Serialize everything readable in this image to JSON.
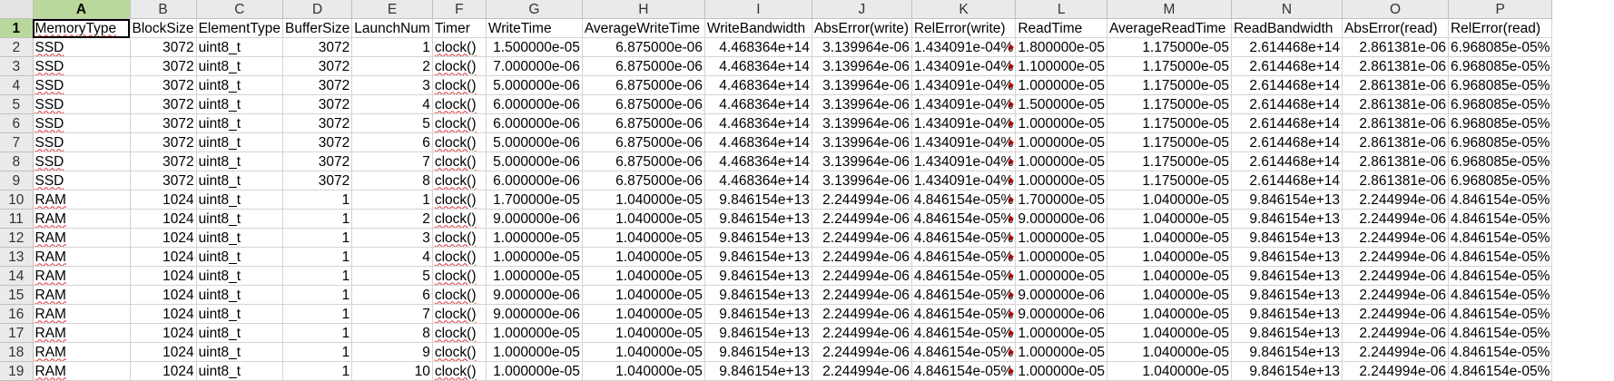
{
  "column_letters": [
    "A",
    "B",
    "C",
    "D",
    "E",
    "F",
    "G",
    "H",
    "I",
    "J",
    "K",
    "L",
    "M",
    "N",
    "O",
    "P"
  ],
  "header": [
    "MemoryType",
    "BlockSize",
    "ElementType",
    "BufferSize",
    "LaunchNum",
    "Timer",
    "WriteTime",
    "AverageWriteTime",
    "WriteBandwidth",
    "AbsError(write)",
    "RelError(write)",
    "ReadTime",
    "AverageReadTime",
    "ReadBandwidth",
    "AbsError(read)",
    "RelError(read)"
  ],
  "rows": [
    {
      "n": "2",
      "c": [
        "SSD",
        "3072",
        "uint8_t",
        "3072",
        "1",
        "clock()",
        "1.500000e-05",
        "6.875000e-06",
        "4.468364e+14",
        "3.139964e-06",
        "1.434091e-04%",
        "1.800000e-05",
        "1.175000e-05",
        "2.614468e+14",
        "2.861381e-06",
        "6.968085e-05%"
      ]
    },
    {
      "n": "3",
      "c": [
        "SSD",
        "3072",
        "uint8_t",
        "3072",
        "2",
        "clock()",
        "7.000000e-06",
        "6.875000e-06",
        "4.468364e+14",
        "3.139964e-06",
        "1.434091e-04%",
        "1.100000e-05",
        "1.175000e-05",
        "2.614468e+14",
        "2.861381e-06",
        "6.968085e-05%"
      ]
    },
    {
      "n": "4",
      "c": [
        "SSD",
        "3072",
        "uint8_t",
        "3072",
        "3",
        "clock()",
        "5.000000e-06",
        "6.875000e-06",
        "4.468364e+14",
        "3.139964e-06",
        "1.434091e-04%",
        "1.000000e-05",
        "1.175000e-05",
        "2.614468e+14",
        "2.861381e-06",
        "6.968085e-05%"
      ]
    },
    {
      "n": "5",
      "c": [
        "SSD",
        "3072",
        "uint8_t",
        "3072",
        "4",
        "clock()",
        "6.000000e-06",
        "6.875000e-06",
        "4.468364e+14",
        "3.139964e-06",
        "1.434091e-04%",
        "1.500000e-05",
        "1.175000e-05",
        "2.614468e+14",
        "2.861381e-06",
        "6.968085e-05%"
      ]
    },
    {
      "n": "6",
      "c": [
        "SSD",
        "3072",
        "uint8_t",
        "3072",
        "5",
        "clock()",
        "6.000000e-06",
        "6.875000e-06",
        "4.468364e+14",
        "3.139964e-06",
        "1.434091e-04%",
        "1.000000e-05",
        "1.175000e-05",
        "2.614468e+14",
        "2.861381e-06",
        "6.968085e-05%"
      ]
    },
    {
      "n": "7",
      "c": [
        "SSD",
        "3072",
        "uint8_t",
        "3072",
        "6",
        "clock()",
        "5.000000e-06",
        "6.875000e-06",
        "4.468364e+14",
        "3.139964e-06",
        "1.434091e-04%",
        "1.000000e-05",
        "1.175000e-05",
        "2.614468e+14",
        "2.861381e-06",
        "6.968085e-05%"
      ]
    },
    {
      "n": "8",
      "c": [
        "SSD",
        "3072",
        "uint8_t",
        "3072",
        "7",
        "clock()",
        "5.000000e-06",
        "6.875000e-06",
        "4.468364e+14",
        "3.139964e-06",
        "1.434091e-04%",
        "1.000000e-05",
        "1.175000e-05",
        "2.614468e+14",
        "2.861381e-06",
        "6.968085e-05%"
      ]
    },
    {
      "n": "9",
      "c": [
        "SSD",
        "3072",
        "uint8_t",
        "3072",
        "8",
        "clock()",
        "6.000000e-06",
        "6.875000e-06",
        "4.468364e+14",
        "3.139964e-06",
        "1.434091e-04%",
        "1.000000e-05",
        "1.175000e-05",
        "2.614468e+14",
        "2.861381e-06",
        "6.968085e-05%"
      ]
    },
    {
      "n": "10",
      "c": [
        "RAM",
        "1024",
        "uint8_t",
        "1",
        "1",
        "clock()",
        "1.700000e-05",
        "1.040000e-05",
        "9.846154e+13",
        "2.244994e-06",
        "4.846154e-05%",
        "1.700000e-05",
        "1.040000e-05",
        "9.846154e+13",
        "2.244994e-06",
        "4.846154e-05%"
      ]
    },
    {
      "n": "11",
      "c": [
        "RAM",
        "1024",
        "uint8_t",
        "1",
        "2",
        "clock()",
        "9.000000e-06",
        "1.040000e-05",
        "9.846154e+13",
        "2.244994e-06",
        "4.846154e-05%",
        "9.000000e-06",
        "1.040000e-05",
        "9.846154e+13",
        "2.244994e-06",
        "4.846154e-05%"
      ]
    },
    {
      "n": "12",
      "c": [
        "RAM",
        "1024",
        "uint8_t",
        "1",
        "3",
        "clock()",
        "1.000000e-05",
        "1.040000e-05",
        "9.846154e+13",
        "2.244994e-06",
        "4.846154e-05%",
        "1.000000e-05",
        "1.040000e-05",
        "9.846154e+13",
        "2.244994e-06",
        "4.846154e-05%"
      ]
    },
    {
      "n": "13",
      "c": [
        "RAM",
        "1024",
        "uint8_t",
        "1",
        "4",
        "clock()",
        "1.000000e-05",
        "1.040000e-05",
        "9.846154e+13",
        "2.244994e-06",
        "4.846154e-05%",
        "1.000000e-05",
        "1.040000e-05",
        "9.846154e+13",
        "2.244994e-06",
        "4.846154e-05%"
      ]
    },
    {
      "n": "14",
      "c": [
        "RAM",
        "1024",
        "uint8_t",
        "1",
        "5",
        "clock()",
        "1.000000e-05",
        "1.040000e-05",
        "9.846154e+13",
        "2.244994e-06",
        "4.846154e-05%",
        "1.000000e-05",
        "1.040000e-05",
        "9.846154e+13",
        "2.244994e-06",
        "4.846154e-05%"
      ]
    },
    {
      "n": "15",
      "c": [
        "RAM",
        "1024",
        "uint8_t",
        "1",
        "6",
        "clock()",
        "9.000000e-06",
        "1.040000e-05",
        "9.846154e+13",
        "2.244994e-06",
        "4.846154e-05%",
        "9.000000e-06",
        "1.040000e-05",
        "9.846154e+13",
        "2.244994e-06",
        "4.846154e-05%"
      ]
    },
    {
      "n": "16",
      "c": [
        "RAM",
        "1024",
        "uint8_t",
        "1",
        "7",
        "clock()",
        "9.000000e-06",
        "1.040000e-05",
        "9.846154e+13",
        "2.244994e-06",
        "4.846154e-05%",
        "9.000000e-06",
        "1.040000e-05",
        "9.846154e+13",
        "2.244994e-06",
        "4.846154e-05%"
      ]
    },
    {
      "n": "17",
      "c": [
        "RAM",
        "1024",
        "uint8_t",
        "1",
        "8",
        "clock()",
        "1.000000e-05",
        "1.040000e-05",
        "9.846154e+13",
        "2.244994e-06",
        "4.846154e-05%",
        "1.000000e-05",
        "1.040000e-05",
        "9.846154e+13",
        "2.244994e-06",
        "4.846154e-05%"
      ]
    },
    {
      "n": "18",
      "c": [
        "RAM",
        "1024",
        "uint8_t",
        "1",
        "9",
        "clock()",
        "1.000000e-05",
        "1.040000e-05",
        "9.846154e+13",
        "2.244994e-06",
        "4.846154e-05%",
        "1.000000e-05",
        "1.040000e-05",
        "9.846154e+13",
        "2.244994e-06",
        "4.846154e-05%"
      ]
    },
    {
      "n": "19",
      "c": [
        "RAM",
        "1024",
        "uint8_t",
        "1",
        "10",
        "clock()",
        "1.000000e-05",
        "1.040000e-05",
        "9.846154e+13",
        "2.244994e-06",
        "4.846154e-05%",
        "1.000000e-05",
        "1.040000e-05",
        "9.846154e+13",
        "2.244994e-06",
        "4.846154e-05%"
      ]
    }
  ],
  "colors": {
    "selection_header": "#b9d99c",
    "header_bg": "#eaeaea",
    "gridline": "#d4d4d4",
    "spellcheck": "#e03030",
    "overflow_marker": "#c00000"
  }
}
